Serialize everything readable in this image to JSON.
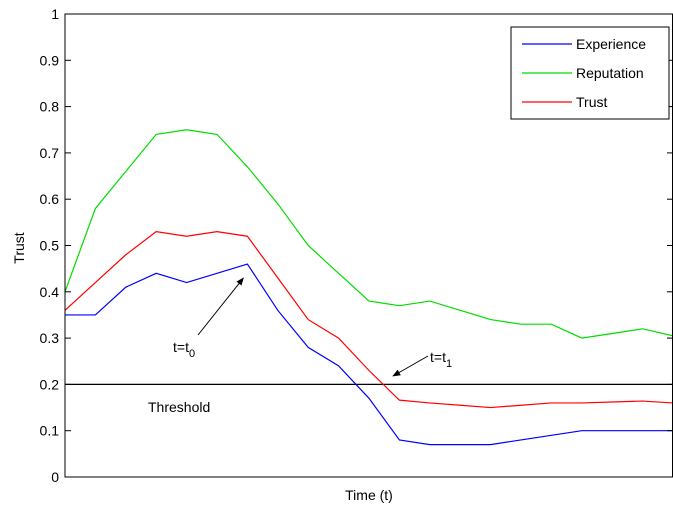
{
  "chart_data": {
    "type": "line",
    "xlabel": "Time (t)",
    "ylabel": "Trust",
    "ylim": [
      0,
      1
    ],
    "yticks": [
      0,
      0.1,
      0.2,
      0.3,
      0.4,
      0.5,
      0.6,
      0.7,
      0.8,
      0.9,
      1
    ],
    "ytick_labels": [
      "0",
      "0.1",
      "0.2",
      "0.3",
      "0.4",
      "0.5",
      "0.6",
      "0.7",
      "0.8",
      "0.9",
      "1"
    ],
    "xlim": [
      0,
      20
    ],
    "x": [
      0,
      1,
      2,
      3,
      4,
      5,
      6,
      7,
      8,
      9,
      10,
      11,
      12,
      13,
      14,
      15,
      16,
      17,
      18,
      19,
      20
    ],
    "legend_position": "top-right",
    "series": [
      {
        "name": "Experience",
        "color": "#0000ff",
        "values": [
          0.35,
          0.35,
          0.41,
          0.44,
          0.42,
          0.44,
          0.46,
          0.36,
          0.28,
          0.24,
          0.17,
          0.08,
          0.07,
          0.07,
          0.07,
          0.08,
          0.09,
          0.1,
          0.1,
          0.1,
          0.1
        ]
      },
      {
        "name": "Reputation",
        "color": "#00dd00",
        "values": [
          0.4,
          0.58,
          0.66,
          0.74,
          0.75,
          0.74,
          0.67,
          0.59,
          0.5,
          0.44,
          0.38,
          0.37,
          0.38,
          0.36,
          0.34,
          0.33,
          0.33,
          0.3,
          0.31,
          0.32,
          0.305
        ]
      },
      {
        "name": "Trust",
        "color": "#ff0000",
        "values": [
          0.36,
          0.42,
          0.48,
          0.53,
          0.52,
          0.53,
          0.52,
          0.43,
          0.34,
          0.3,
          0.23,
          0.166,
          0.16,
          0.155,
          0.15,
          0.155,
          0.16,
          0.16,
          0.162,
          0.164,
          0.16
        ]
      }
    ],
    "threshold": {
      "value": 0.2,
      "label": "Threshold",
      "color": "#000000"
    },
    "annotations": [
      {
        "label_main": "t=t",
        "label_sub": "0",
        "x": 6,
        "y": 0.46
      },
      {
        "label_main": "t=t",
        "label_sub": "1",
        "x": 11,
        "y": 0.17
      }
    ]
  }
}
